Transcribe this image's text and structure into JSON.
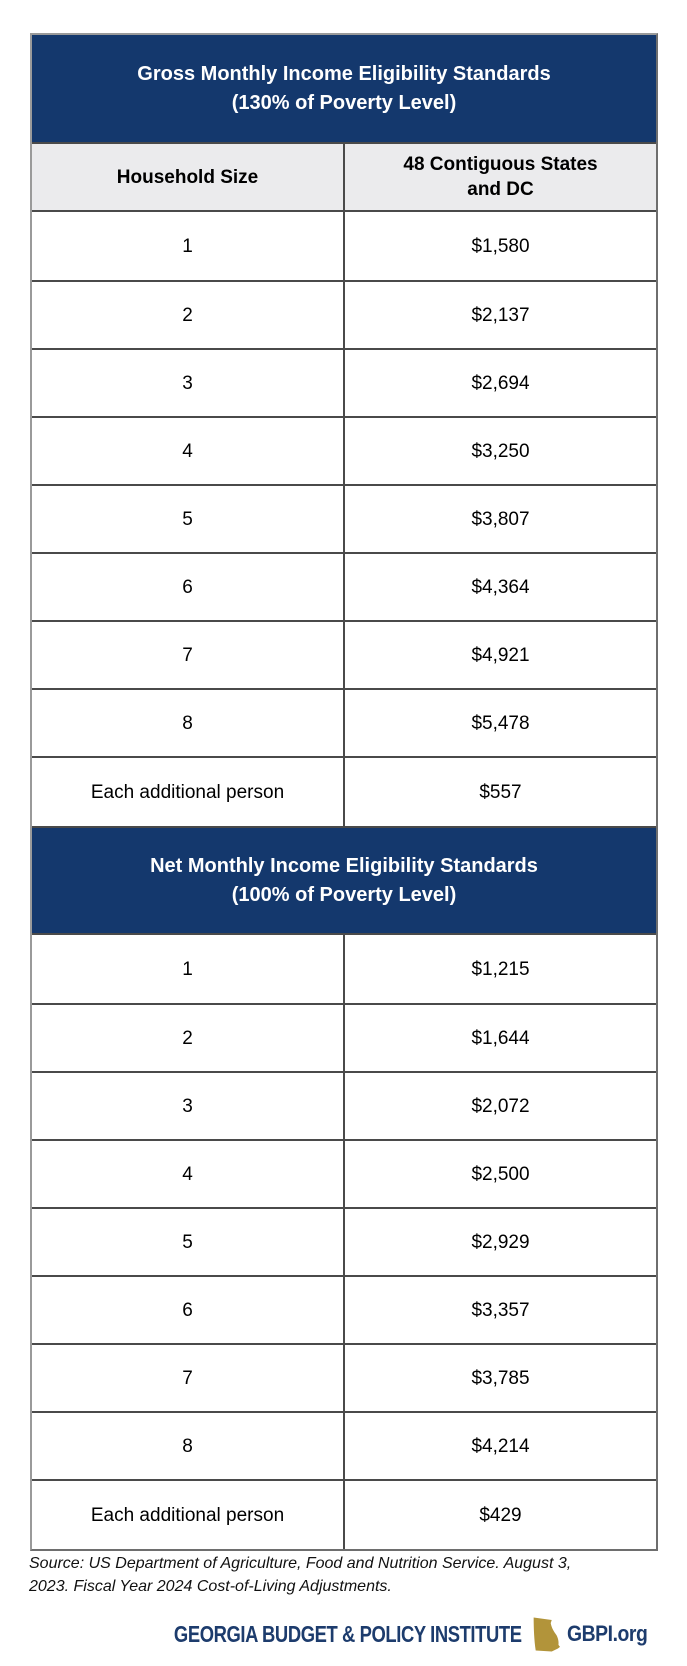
{
  "colors": {
    "header_navy": "#14386d",
    "footer_navy": "#1d3c6d",
    "georgia_gold": "#b2943a",
    "column_header_bg": "#ebebed",
    "grid_border": "#4a4a4a"
  },
  "chart_data": [
    {
      "type": "table",
      "title": "Gross Monthly Income Eligibility Standards",
      "subtitle": "(130% of Poverty Level)",
      "columns": [
        "Household Size",
        "48 Contiguous States\nand DC"
      ],
      "rows": [
        [
          "1",
          "$1,580"
        ],
        [
          "2",
          "$2,137"
        ],
        [
          "3",
          "$2,694"
        ],
        [
          "4",
          "$3,250"
        ],
        [
          "5",
          "$3,807"
        ],
        [
          "6",
          "$4,364"
        ],
        [
          "7",
          "$4,921"
        ],
        [
          "8",
          "$5,478"
        ],
        [
          "Each additional person",
          "$557"
        ]
      ]
    },
    {
      "type": "table",
      "title": "Net Monthly Income Eligibility Standards",
      "subtitle": "(100% of Poverty Level)",
      "columns": [
        "Household Size",
        "48 Contiguous States\nand DC"
      ],
      "rows": [
        [
          "1",
          "$1,215"
        ],
        [
          "2",
          "$1,644"
        ],
        [
          "3",
          "$2,072"
        ],
        [
          "4",
          "$2,500"
        ],
        [
          "5",
          "$2,929"
        ],
        [
          "6",
          "$3,357"
        ],
        [
          "7",
          "$3,785"
        ],
        [
          "8",
          "$4,214"
        ],
        [
          "Each additional person",
          "$429"
        ]
      ]
    }
  ],
  "source_note": "Source: US Department of Agriculture, Food and Nutrition Service. August 3,\n2023. Fiscal Year 2024 Cost-of-Living Adjustments.",
  "footer": {
    "org_name": "GEORGIA BUDGET & POLICY INSTITUTE",
    "site": "GBPI.org",
    "icon": "georgia-state-icon"
  }
}
